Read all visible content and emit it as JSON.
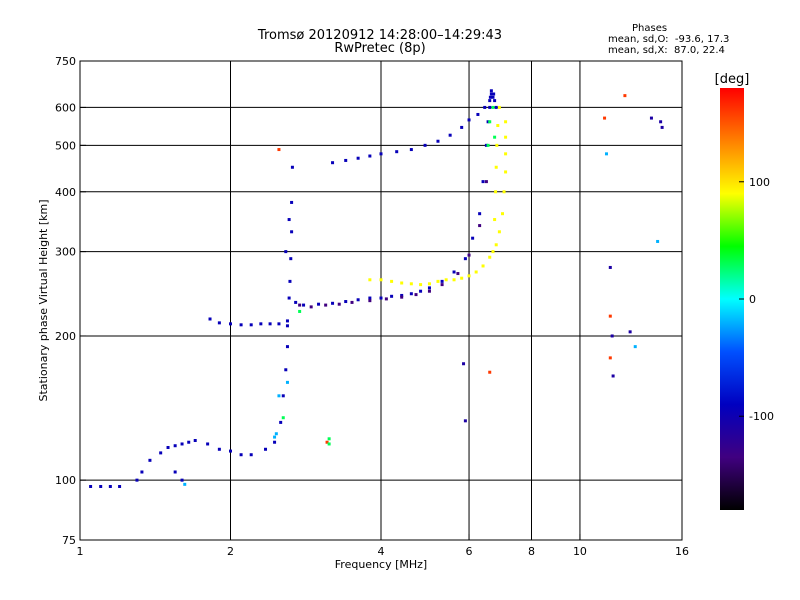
{
  "header": {
    "title_line1": "Tromsø 20120912 14:28:00–14:29:43",
    "title_line2": "RwPretec (8p)",
    "phases_title": "Phases",
    "phases_o": "mean, sd,O:  -93.6, 17.3",
    "phases_x": "mean, sd,X:  87.0, 22.4"
  },
  "chart_data": {
    "type": "scatter",
    "title": "Tromsø 20120912 14:28:00–14:29:43",
    "subtitle": "RwPretec (8p)",
    "xlabel": "Frequency [MHz]",
    "ylabel": "Stationary phase Virtual Height [km]",
    "x_scale": "log",
    "y_scale": "log",
    "xlim": [
      1,
      16
    ],
    "ylim": [
      75,
      750
    ],
    "x_ticks": [
      1,
      2,
      4,
      6,
      8,
      10,
      16
    ],
    "x_tick_labels": [
      "1",
      "2",
      "4",
      "6",
      "8",
      "10",
      "16"
    ],
    "y_ticks": [
      75,
      100,
      200,
      300,
      400,
      500,
      600,
      750
    ],
    "y_tick_labels": [
      "75",
      "100",
      "200",
      "300",
      "400",
      "500",
      "600",
      "750"
    ],
    "grid": true,
    "colorbar": {
      "label": "[deg]",
      "range": [
        -180,
        180
      ],
      "ticks": [
        100,
        0,
        -100
      ],
      "tick_labels": [
        "100",
        "0",
        "-100"
      ],
      "colors": [
        "#ff0000",
        "#ff8000",
        "#ffff00",
        "#00ff00",
        "#00ffff",
        "#0050ff",
        "#0000c0",
        "#400080",
        "#000000"
      ]
    },
    "series": [
      {
        "color_value": -95,
        "x": [
          1.05,
          1.1,
          1.15,
          1.2,
          1.3,
          1.33,
          1.38,
          1.45,
          1.5,
          1.55,
          1.6,
          1.65,
          1.7,
          1.8,
          1.9,
          2.0,
          2.1,
          2.2,
          2.35,
          2.45,
          2.52,
          2.55,
          2.58,
          2.6,
          2.6,
          2.62,
          2.63,
          2.64,
          2.65,
          2.65,
          2.66,
          1.82,
          1.9,
          2.0,
          2.1,
          2.2,
          2.3,
          2.4,
          2.5,
          2.6,
          2.7,
          2.8,
          3.0,
          3.2,
          3.4,
          3.6,
          3.8,
          4.0,
          4.2,
          4.4,
          4.6,
          4.8,
          5.0,
          5.3,
          5.6,
          5.9,
          6.1,
          6.3,
          6.4,
          6.5,
          6.55,
          6.6,
          6.62,
          6.65,
          6.65,
          3.2,
          3.4,
          3.6,
          3.8,
          4.0,
          4.3,
          4.6,
          4.9,
          5.2,
          5.5,
          5.8,
          6.0,
          6.25,
          6.45,
          6.6,
          6.7,
          6.72,
          6.75,
          6.8,
          1.55,
          1.6,
          2.58,
          2.62
        ],
        "y": [
          97,
          97,
          97,
          97,
          100,
          104,
          110,
          114,
          117,
          118,
          119,
          120,
          121,
          119,
          116,
          115,
          113,
          113,
          116,
          120,
          132,
          150,
          170,
          190,
          210,
          240,
          260,
          290,
          330,
          380,
          450,
          217,
          213,
          212,
          211,
          211,
          212,
          212,
          212,
          215,
          235,
          232,
          233,
          234,
          236,
          238,
          240,
          240,
          242,
          243,
          245,
          248,
          252,
          260,
          272,
          290,
          320,
          360,
          420,
          500,
          560,
          600,
          630,
          650,
          640,
          460,
          465,
          470,
          475,
          480,
          485,
          490,
          500,
          510,
          525,
          545,
          565,
          580,
          600,
          620,
          630,
          640,
          620,
          600,
          104,
          100,
          300,
          350
        ]
      },
      {
        "color_value": -135,
        "x": [
          2.75,
          2.9,
          3.1,
          3.3,
          3.5,
          3.8,
          4.1,
          4.4,
          4.7,
          5.0,
          5.3,
          5.7,
          6.0,
          6.3,
          6.5
        ],
        "y": [
          232,
          230,
          232,
          233,
          235,
          237,
          239,
          241,
          244,
          248,
          256,
          270,
          295,
          340,
          420
        ]
      },
      {
        "color_value": 90,
        "x": [
          3.8,
          4.0,
          4.2,
          4.4,
          4.6,
          4.8,
          5.0,
          5.2,
          5.4,
          5.6,
          5.8,
          6.0,
          6.2,
          6.4,
          6.6,
          6.8,
          6.9,
          7.0,
          7.05,
          7.1,
          7.1,
          7.1,
          7.1,
          6.7,
          6.75,
          6.78,
          6.8,
          6.82,
          6.85,
          6.9
        ],
        "y": [
          262,
          262,
          260,
          258,
          257,
          256,
          257,
          260,
          262,
          262,
          264,
          267,
          272,
          280,
          292,
          310,
          330,
          360,
          400,
          440,
          480,
          520,
          560,
          300,
          350,
          400,
          450,
          500,
          550,
          600
        ]
      },
      {
        "color_value": 160,
        "x": [
          2.5,
          3.12,
          6.6,
          11.2,
          11.5,
          12.3,
          11.5
        ],
        "y": [
          490,
          120,
          168,
          570,
          220,
          635,
          180
        ]
      },
      {
        "color_value": 30,
        "x": [
          2.55,
          2.75,
          3.15,
          3.15,
          6.55,
          6.6,
          6.7,
          6.75
        ],
        "y": [
          135,
          225,
          119,
          122,
          500,
          560,
          600,
          520
        ]
      },
      {
        "color_value": -20,
        "x": [
          2.45,
          2.47,
          2.5,
          2.6,
          1.62,
          11.3,
          12.9,
          14.3
        ],
        "y": [
          123,
          125,
          150,
          160,
          98,
          480,
          190,
          315
        ]
      },
      {
        "color_value": -110,
        "x": [
          5.85,
          5.9,
          11.5,
          11.6,
          11.65,
          13.9,
          14.5,
          14.6,
          12.6
        ],
        "y": [
          175,
          133,
          278,
          200,
          165,
          570,
          560,
          545,
          204
        ]
      }
    ]
  }
}
